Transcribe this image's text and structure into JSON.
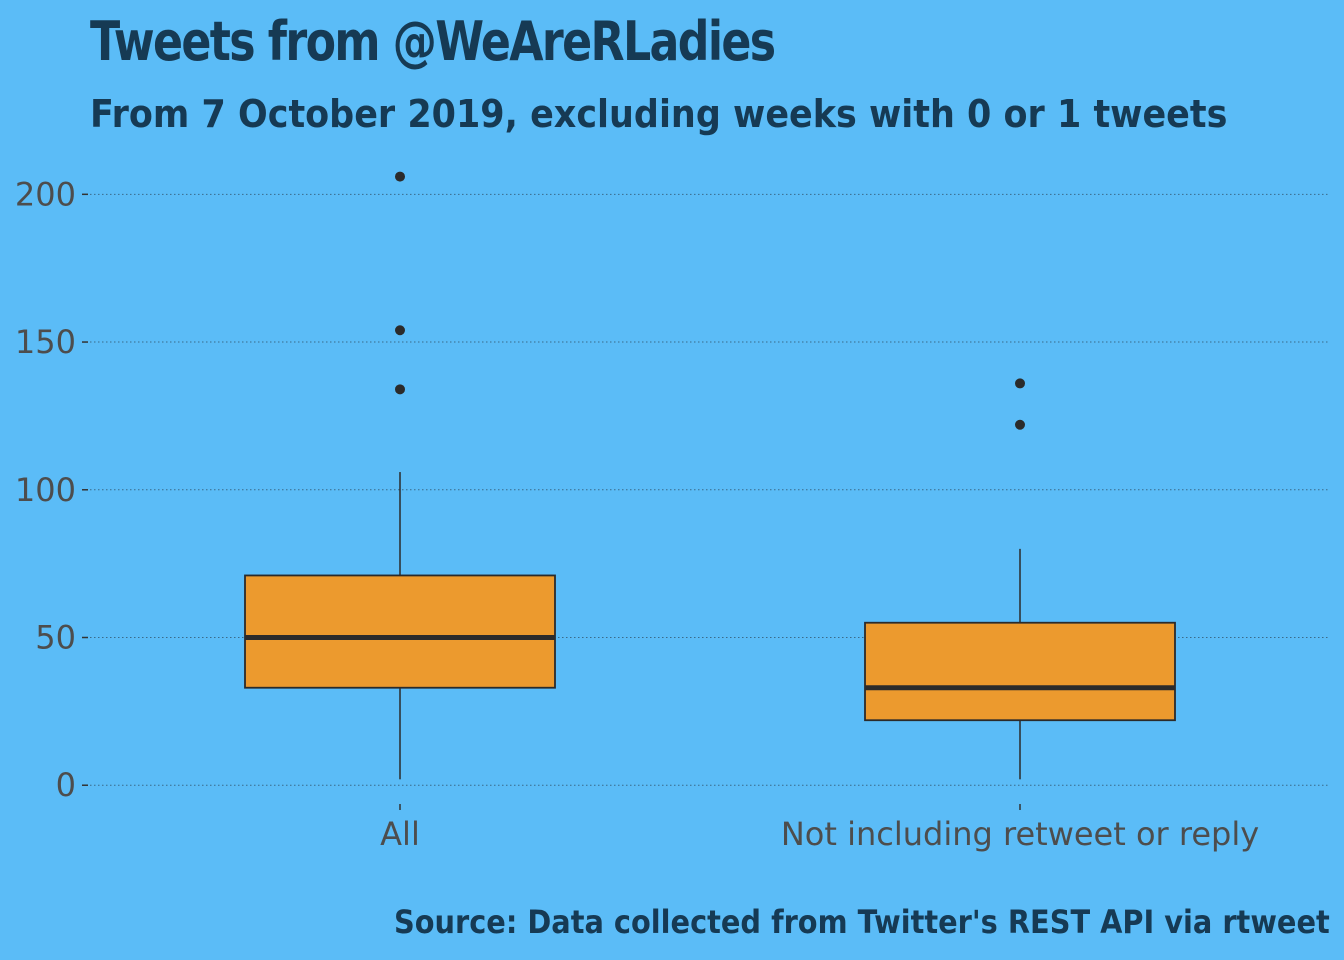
{
  "chart_data": {
    "type": "box",
    "title": "Tweets from @WeAreRLadies",
    "subtitle": "From 7 October 2019, excluding weeks with 0 or 1 tweets",
    "caption": "Source: Data collected from Twitter's REST API via rtweet",
    "xlabel": "",
    "ylabel": "",
    "ylim": [
      -5,
      215
    ],
    "yticks": [
      0,
      50,
      100,
      150,
      200
    ],
    "grid": "horizontal dotted",
    "categories": [
      "All",
      "Not including retweet or reply"
    ],
    "boxes": [
      {
        "category": "All",
        "min": 2,
        "q1": 33,
        "median": 50,
        "q3": 71,
        "max": 106,
        "outliers": [
          134,
          154,
          206
        ]
      },
      {
        "category": "Not including retweet or reply",
        "min": 2,
        "q1": 22,
        "median": 33,
        "q3": 55,
        "max": 80,
        "outliers": [
          122,
          136
        ]
      }
    ],
    "colors": {
      "background": "#5bbcf7",
      "box_fill": "#ec9a2e",
      "box_stroke": "#2b2b2b",
      "title": "#163a54",
      "tick_text": "#4d4d4d",
      "grid": "#3a6a8a"
    }
  }
}
